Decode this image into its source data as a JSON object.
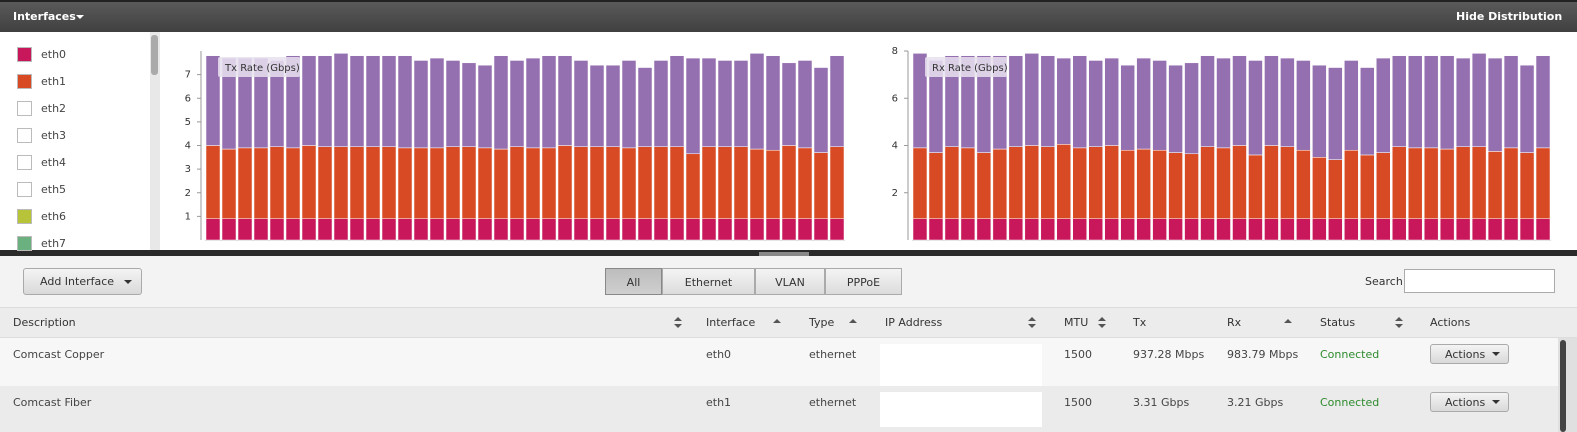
{
  "header": {
    "title": "Interfaces",
    "action": "Hide Distribution"
  },
  "legend": [
    {
      "label": "eth0",
      "color": "#c8175a"
    },
    {
      "label": "eth1",
      "color": "#d84a23"
    },
    {
      "label": "eth2",
      "color": "#ffffff"
    },
    {
      "label": "eth3",
      "color": "#ffffff"
    },
    {
      "label": "eth4",
      "color": "#ffffff"
    },
    {
      "label": "eth5",
      "color": "#ffffff"
    },
    {
      "label": "eth6",
      "color": "#b7c43a"
    },
    {
      "label": "eth7",
      "color": "#6bb07f"
    }
  ],
  "chart_data": [
    {
      "type": "bar",
      "stacked": true,
      "title": "Tx Rate (Gbps)",
      "ylim": [
        0,
        8
      ],
      "yticks": [
        1,
        2,
        3,
        4,
        5,
        6,
        7
      ],
      "series": [
        {
          "color": "#c8175a",
          "values": [
            0.9,
            0.9,
            0.9,
            0.9,
            0.9,
            0.9,
            0.9,
            0.9,
            0.9,
            0.9,
            0.9,
            0.9,
            0.9,
            0.9,
            0.9,
            0.9,
            0.9,
            0.9,
            0.9,
            0.9,
            0.9,
            0.9,
            0.9,
            0.9,
            0.9,
            0.9,
            0.9,
            0.9,
            0.9,
            0.9,
            0.9,
            0.9,
            0.9,
            0.9,
            0.9,
            0.9,
            0.9,
            0.9,
            0.9,
            0.9
          ]
        },
        {
          "color": "#d84a23",
          "values": [
            3.1,
            2.95,
            3.0,
            3.0,
            3.05,
            3.0,
            3.1,
            3.05,
            3.05,
            3.05,
            3.05,
            3.05,
            3.0,
            3.0,
            3.0,
            3.05,
            3.05,
            3.0,
            2.95,
            3.05,
            3.0,
            3.0,
            3.1,
            3.05,
            3.05,
            3.05,
            3.0,
            3.05,
            3.05,
            3.05,
            2.75,
            3.05,
            3.05,
            3.05,
            2.95,
            2.9,
            3.1,
            3.0,
            2.8,
            3.05
          ]
        },
        {
          "color": "#9570b0",
          "values": [
            3.8,
            3.85,
            3.8,
            3.8,
            3.65,
            3.9,
            3.8,
            3.85,
            3.95,
            3.85,
            3.85,
            3.85,
            3.9,
            3.7,
            3.8,
            3.65,
            3.55,
            3.5,
            3.95,
            3.65,
            3.8,
            3.9,
            3.8,
            3.65,
            3.45,
            3.45,
            3.7,
            3.35,
            3.65,
            3.85,
            4.05,
            3.75,
            3.65,
            3.65,
            4.05,
            4.0,
            3.5,
            3.7,
            3.6,
            3.85
          ]
        }
      ]
    },
    {
      "type": "bar",
      "stacked": true,
      "title": "Rx Rate (Gbps)",
      "ylim": [
        0,
        8
      ],
      "yticks": [
        2,
        4,
        6,
        8
      ],
      "series": [
        {
          "color": "#c8175a",
          "values": [
            0.9,
            0.9,
            0.9,
            0.9,
            0.9,
            0.9,
            0.9,
            0.9,
            0.9,
            0.9,
            0.9,
            0.9,
            0.9,
            0.9,
            0.9,
            0.9,
            0.9,
            0.9,
            0.9,
            0.9,
            0.9,
            0.9,
            0.9,
            0.9,
            0.9,
            0.9,
            0.9,
            0.9,
            0.9,
            0.9,
            0.9,
            0.9,
            0.9,
            0.9,
            0.9,
            0.9,
            0.9,
            0.9,
            0.9,
            0.9
          ]
        },
        {
          "color": "#d84a23",
          "values": [
            3.0,
            2.8,
            3.05,
            3.0,
            2.8,
            2.95,
            3.05,
            3.1,
            3.05,
            3.15,
            3.0,
            3.05,
            3.1,
            2.9,
            2.95,
            2.9,
            2.8,
            2.75,
            3.05,
            3.0,
            3.1,
            2.7,
            3.1,
            3.05,
            2.9,
            2.6,
            2.5,
            2.9,
            2.7,
            2.8,
            3.05,
            3.0,
            3.0,
            2.95,
            3.05,
            3.05,
            2.85,
            3.0,
            2.8,
            3.0
          ]
        },
        {
          "color": "#9570b0",
          "values": [
            4.0,
            3.9,
            3.85,
            3.9,
            4.1,
            3.95,
            3.85,
            3.9,
            3.85,
            3.65,
            3.9,
            3.65,
            3.7,
            3.6,
            3.85,
            3.8,
            3.7,
            3.85,
            3.85,
            3.8,
            3.8,
            4.0,
            3.8,
            3.75,
            3.8,
            3.9,
            3.9,
            3.8,
            3.7,
            4.0,
            3.85,
            3.9,
            3.9,
            3.95,
            3.75,
            3.95,
            3.95,
            3.9,
            3.7,
            3.9
          ]
        }
      ]
    }
  ],
  "toolbar": {
    "add_button": "Add Interface",
    "tabs": [
      "All",
      "Ethernet",
      "VLAN",
      "PPPoE"
    ],
    "active_tab": 0,
    "search_label": "Search"
  },
  "table": {
    "columns": [
      "Description",
      "Interface",
      "Type",
      "IP Address",
      "MTU",
      "Tx",
      "Rx",
      "Status",
      "Actions"
    ],
    "rows": [
      [
        "Comcast Copper",
        "eth0",
        "ethernet",
        null,
        "1500",
        "937.28 Mbps",
        "983.79 Mbps",
        "Connected",
        "Actions"
      ],
      [
        "Comcast Fiber",
        "eth1",
        "ethernet",
        null,
        "1500",
        "3.31 Gbps",
        "3.21 Gbps",
        "Connected",
        "Actions"
      ]
    ]
  }
}
